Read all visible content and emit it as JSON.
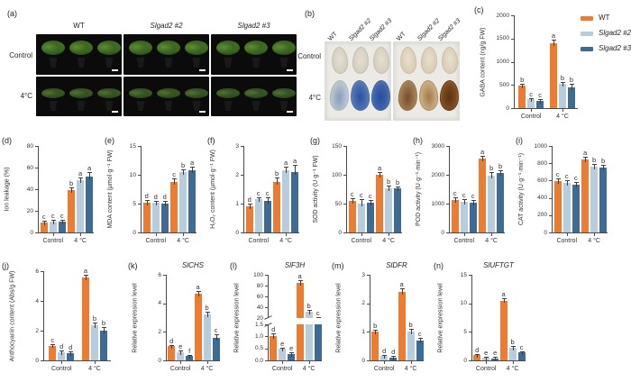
{
  "panels": {
    "a": {
      "letter": "(a)",
      "columns": [
        "WT",
        "Slgad2 #2",
        "Slgad2 #3"
      ],
      "rows": [
        "Control",
        "4°C"
      ]
    },
    "b": {
      "letter": "(b)",
      "columns": [
        "WT",
        "Slgad2 #2",
        "Slgad2 #3"
      ],
      "rows": [
        "Control",
        "4°C"
      ]
    }
  },
  "legend": {
    "items": [
      {
        "label": "WT",
        "color": "#ED7C31",
        "italic": false
      },
      {
        "label": "Slgad2 #2",
        "color": "#B7CDDE",
        "italic": true
      },
      {
        "label": "Slgad2 #3",
        "color": "#3D6B94",
        "italic": true
      }
    ]
  },
  "series_colors": [
    "#ED7C31",
    "#B7CDDE",
    "#3D6B94"
  ],
  "chart_data": [
    {
      "letter": "(c)",
      "type": "bar",
      "title": "",
      "ylabel": "GABA content (ng/g FW)",
      "ylim": [
        0,
        2000
      ],
      "yticks": [
        [
          0,
          "0"
        ],
        [
          500,
          "500"
        ],
        [
          1000,
          "1000"
        ],
        [
          1500,
          "1500"
        ],
        [
          2000,
          "2000"
        ]
      ],
      "categories": [
        "Control",
        "4 °C"
      ],
      "series": [
        {
          "name": "WT",
          "values": [
            480,
            1390
          ],
          "errors": [
            40,
            90
          ],
          "letters": [
            "b",
            "a"
          ]
        },
        {
          "name": "Slgad2 #2",
          "values": [
            190,
            520
          ],
          "errors": [
            30,
            50
          ],
          "letters": [
            "c",
            "b"
          ]
        },
        {
          "name": "Slgad2 #3",
          "values": [
            160,
            450
          ],
          "errors": [
            20,
            70
          ],
          "letters": [
            "c",
            "b"
          ]
        }
      ]
    },
    {
      "letter": "(d)",
      "type": "bar",
      "title": "",
      "ylabel": "Ion leakage (%)",
      "ylim": [
        0,
        80
      ],
      "yticks": [
        [
          0,
          "0"
        ],
        [
          20,
          "20"
        ],
        [
          40,
          "40"
        ],
        [
          60,
          "60"
        ],
        [
          80,
          "80"
        ]
      ],
      "categories": [
        "Control",
        "4 °C"
      ],
      "series": [
        {
          "name": "WT",
          "values": [
            9,
            39
          ],
          "errors": [
            1.5,
            3
          ],
          "letters": [
            "c",
            "b"
          ]
        },
        {
          "name": "Slgad2 #2",
          "values": [
            10,
            48
          ],
          "errors": [
            1.5,
            3
          ],
          "letters": [
            "c",
            "a"
          ]
        },
        {
          "name": "Slgad2 #3",
          "values": [
            10,
            52
          ],
          "errors": [
            1.5,
            4
          ],
          "letters": [
            "c",
            "a"
          ]
        }
      ]
    },
    {
      "letter": "(e)",
      "type": "bar",
      "title": "",
      "ylabel": "MDA content (μmol·g⁻¹ FW)",
      "ylim": [
        0,
        15
      ],
      "yticks": [
        [
          0,
          "0"
        ],
        [
          5,
          "5"
        ],
        [
          10,
          "10"
        ],
        [
          15,
          "15"
        ]
      ],
      "categories": [
        "Control",
        "4 °C"
      ],
      "series": [
        {
          "name": "WT",
          "values": [
            5.2,
            8.8
          ],
          "errors": [
            0.4,
            0.5
          ],
          "letters": [
            "d",
            "c"
          ]
        },
        {
          "name": "Slgad2 #2",
          "values": [
            5.1,
            10.5
          ],
          "errors": [
            0.4,
            0.5
          ],
          "letters": [
            "d",
            "b"
          ]
        },
        {
          "name": "Slgad2 #3",
          "values": [
            5.0,
            10.8
          ],
          "errors": [
            0.5,
            0.6
          ],
          "letters": [
            "d",
            "a"
          ]
        }
      ]
    },
    {
      "letter": "(f)",
      "type": "bar",
      "title": "",
      "ylabel": "H₂O₂ content (μmol·g⁻¹ FW)",
      "ylim": [
        0,
        3
      ],
      "yticks": [
        [
          0,
          "0"
        ],
        [
          1,
          "1"
        ],
        [
          2,
          "2"
        ],
        [
          3,
          "3"
        ]
      ],
      "categories": [
        "Control",
        "4 °C"
      ],
      "series": [
        {
          "name": "WT",
          "values": [
            0.9,
            1.75
          ],
          "errors": [
            0.1,
            0.15
          ],
          "letters": [
            "d",
            "b"
          ]
        },
        {
          "name": "Slgad2 #2",
          "values": [
            1.15,
            2.15
          ],
          "errors": [
            0.08,
            0.12
          ],
          "letters": [
            "c",
            "a"
          ]
        },
        {
          "name": "Slgad2 #3",
          "values": [
            1.1,
            2.1
          ],
          "errors": [
            0.12,
            0.25
          ],
          "letters": [
            "c",
            "a"
          ]
        }
      ]
    },
    {
      "letter": "(g)",
      "type": "bar",
      "title": "",
      "ylabel": "SOD activity (U·g⁻¹ FW)",
      "ylim": [
        0,
        150
      ],
      "yticks": [
        [
          0,
          "0"
        ],
        [
          50,
          "50"
        ],
        [
          100,
          "100"
        ],
        [
          150,
          "150"
        ]
      ],
      "categories": [
        "Control",
        "4 °C"
      ],
      "series": [
        {
          "name": "WT",
          "values": [
            54,
            100
          ],
          "errors": [
            5,
            4
          ],
          "letters": [
            "c",
            "a"
          ]
        },
        {
          "name": "Slgad2 #2",
          "values": [
            50,
            77
          ],
          "errors": [
            8,
            5
          ],
          "letters": [
            "c",
            "b"
          ]
        },
        {
          "name": "Slgad2 #3",
          "values": [
            51,
            76
          ],
          "errors": [
            6,
            4
          ],
          "letters": [
            "c",
            "b"
          ]
        }
      ]
    },
    {
      "letter": "(h)",
      "type": "bar",
      "title": "",
      "ylabel": "POD activity (U·g⁻¹·min⁻¹)",
      "ylim": [
        0,
        3000
      ],
      "yticks": [
        [
          0,
          "0"
        ],
        [
          1000,
          "1000"
        ],
        [
          2000,
          "2000"
        ],
        [
          3000,
          "3000"
        ]
      ],
      "categories": [
        "Control",
        "4 °C"
      ],
      "series": [
        {
          "name": "WT",
          "values": [
            1120,
            2550
          ],
          "errors": [
            90,
            110
          ],
          "letters": [
            "c",
            "a"
          ]
        },
        {
          "name": "Slgad2 #2",
          "values": [
            1060,
            1980
          ],
          "errors": [
            110,
            120
          ],
          "letters": [
            "c",
            "b"
          ]
        },
        {
          "name": "Slgad2 #3",
          "values": [
            1040,
            2060
          ],
          "errors": [
            100,
            100
          ],
          "letters": [
            "c",
            "b"
          ]
        }
      ]
    },
    {
      "letter": "(i)",
      "type": "bar",
      "title": "",
      "ylabel": "CAT activity (U·g⁻¹·min⁻¹)",
      "ylim": [
        0,
        1000
      ],
      "yticks": [
        [
          0,
          "0"
        ],
        [
          200,
          "200"
        ],
        [
          400,
          "400"
        ],
        [
          600,
          "600"
        ],
        [
          800,
          "800"
        ],
        [
          1000,
          "1000"
        ]
      ],
      "categories": [
        "Control",
        "4 °C"
      ],
      "series": [
        {
          "name": "WT",
          "values": [
            590,
            840
          ],
          "errors": [
            35,
            40
          ],
          "letters": [
            "c",
            "a"
          ]
        },
        {
          "name": "Slgad2 #2",
          "values": [
            570,
            760
          ],
          "errors": [
            30,
            35
          ],
          "letters": [
            "c",
            "b"
          ]
        },
        {
          "name": "Slgad2 #3",
          "values": [
            555,
            750
          ],
          "errors": [
            30,
            35
          ],
          "letters": [
            "c",
            "b"
          ]
        }
      ]
    },
    {
      "letter": "(j)",
      "type": "bar",
      "title": "",
      "ylabel": "Anthocyanin content (Abs/g FW)",
      "ylim": [
        0,
        6
      ],
      "yticks": [
        [
          0,
          "0"
        ],
        [
          2,
          "2"
        ],
        [
          4,
          "4"
        ],
        [
          6,
          "6"
        ]
      ],
      "categories": [
        "Control",
        "4 °C"
      ],
      "series": [
        {
          "name": "WT",
          "values": [
            1.0,
            5.6
          ],
          "errors": [
            0.1,
            0.15
          ],
          "letters": [
            "c",
            "a"
          ]
        },
        {
          "name": "Slgad2 #2",
          "values": [
            0.55,
            2.35
          ],
          "errors": [
            0.07,
            0.2
          ],
          "letters": [
            "d",
            "b"
          ]
        },
        {
          "name": "Slgad2 #3",
          "values": [
            0.5,
            2.0
          ],
          "errors": [
            0.06,
            0.25
          ],
          "letters": [
            "d",
            "b"
          ]
        }
      ]
    },
    {
      "letter": "(k)",
      "type": "bar",
      "title": "SlCHS",
      "ylabel": "Relative expression level",
      "ylim": [
        0,
        6
      ],
      "yticks": [
        [
          0,
          "0"
        ],
        [
          2,
          "2"
        ],
        [
          4,
          "4"
        ],
        [
          6,
          "6"
        ]
      ],
      "categories": [
        "Control",
        "4 °C"
      ],
      "series": [
        {
          "name": "WT",
          "values": [
            1.0,
            4.7
          ],
          "errors": [
            0.08,
            0.15
          ],
          "letters": [
            "d",
            "a"
          ]
        },
        {
          "name": "Slgad2 #2",
          "values": [
            0.6,
            3.2
          ],
          "errors": [
            0.08,
            0.2
          ],
          "letters": [
            "e",
            "b"
          ]
        },
        {
          "name": "Slgad2 #3",
          "values": [
            0.3,
            1.6
          ],
          "errors": [
            0.05,
            0.25
          ],
          "letters": [
            "f",
            "c"
          ]
        }
      ]
    },
    {
      "letter": "(l)",
      "type": "bar",
      "title": "SlF3H",
      "ylabel": "Relative expression level",
      "ylim": [
        0,
        100
      ],
      "axis_break": {
        "low_max": 1.5,
        "high_min": 20,
        "high_max": 100,
        "low_frac": 0.42,
        "gap_frac": 0.07,
        "low_ticks": [
          [
            0,
            "0.0"
          ],
          [
            0.5,
            "0.5"
          ],
          [
            1,
            "1.0"
          ],
          [
            1.5,
            "1.5"
          ]
        ],
        "high_ticks": [
          [
            20,
            "20"
          ],
          [
            40,
            "40"
          ],
          [
            60,
            "60"
          ],
          [
            80,
            "80"
          ],
          [
            100,
            "100"
          ]
        ]
      },
      "categories": [
        "Control",
        "4 °C"
      ],
      "series": [
        {
          "name": "WT",
          "values": [
            1.0,
            85
          ],
          "errors": [
            0.12,
            5
          ],
          "letters": [
            "d",
            "a"
          ]
        },
        {
          "name": "Slgad2 #2",
          "values": [
            0.47,
            32
          ],
          "errors": [
            0.06,
            3
          ],
          "letters": [
            "e",
            "b"
          ]
        },
        {
          "name": "Slgad2 #3",
          "values": [
            0.27,
            20.5
          ],
          "errors": [
            0.05,
            1.5
          ],
          "letters": [
            "e",
            "c"
          ]
        }
      ]
    },
    {
      "letter": "(m)",
      "type": "bar",
      "title": "SlDFR",
      "ylabel": "Relative expression level",
      "ylim": [
        0,
        3
      ],
      "yticks": [
        [
          0,
          "0"
        ],
        [
          1,
          "1"
        ],
        [
          2,
          "2"
        ],
        [
          3,
          "3"
        ]
      ],
      "categories": [
        "Control",
        "4 °C"
      ],
      "series": [
        {
          "name": "WT",
          "values": [
            1.0,
            2.4
          ],
          "errors": [
            0.08,
            0.12
          ],
          "letters": [
            "b",
            "a"
          ]
        },
        {
          "name": "Slgad2 #2",
          "values": [
            0.15,
            1.0
          ],
          "errors": [
            0.03,
            0.1
          ],
          "letters": [
            "d",
            "b"
          ]
        },
        {
          "name": "Slgad2 #3",
          "values": [
            0.1,
            0.7
          ],
          "errors": [
            0.02,
            0.08
          ],
          "letters": [
            "d",
            "c"
          ]
        }
      ]
    },
    {
      "letter": "(n)",
      "type": "bar",
      "title": "SlUFTGT",
      "ylabel": "Relative expression level",
      "ylim": [
        0,
        15
      ],
      "yticks": [
        [
          0,
          "0"
        ],
        [
          5,
          "5"
        ],
        [
          10,
          "10"
        ],
        [
          15,
          "15"
        ]
      ],
      "categories": [
        "Control",
        "4 °C"
      ],
      "series": [
        {
          "name": "WT",
          "values": [
            0.9,
            10.5
          ],
          "errors": [
            0.1,
            0.4
          ],
          "letters": [
            "d",
            "a"
          ]
        },
        {
          "name": "Slgad2 #2",
          "values": [
            0.4,
            2.2
          ],
          "errors": [
            0.06,
            0.3
          ],
          "letters": [
            "e",
            "b"
          ]
        },
        {
          "name": "Slgad2 #3",
          "values": [
            0.35,
            1.4
          ],
          "errors": [
            0.05,
            0.2
          ],
          "letters": [
            "e",
            "c"
          ]
        }
      ]
    }
  ]
}
